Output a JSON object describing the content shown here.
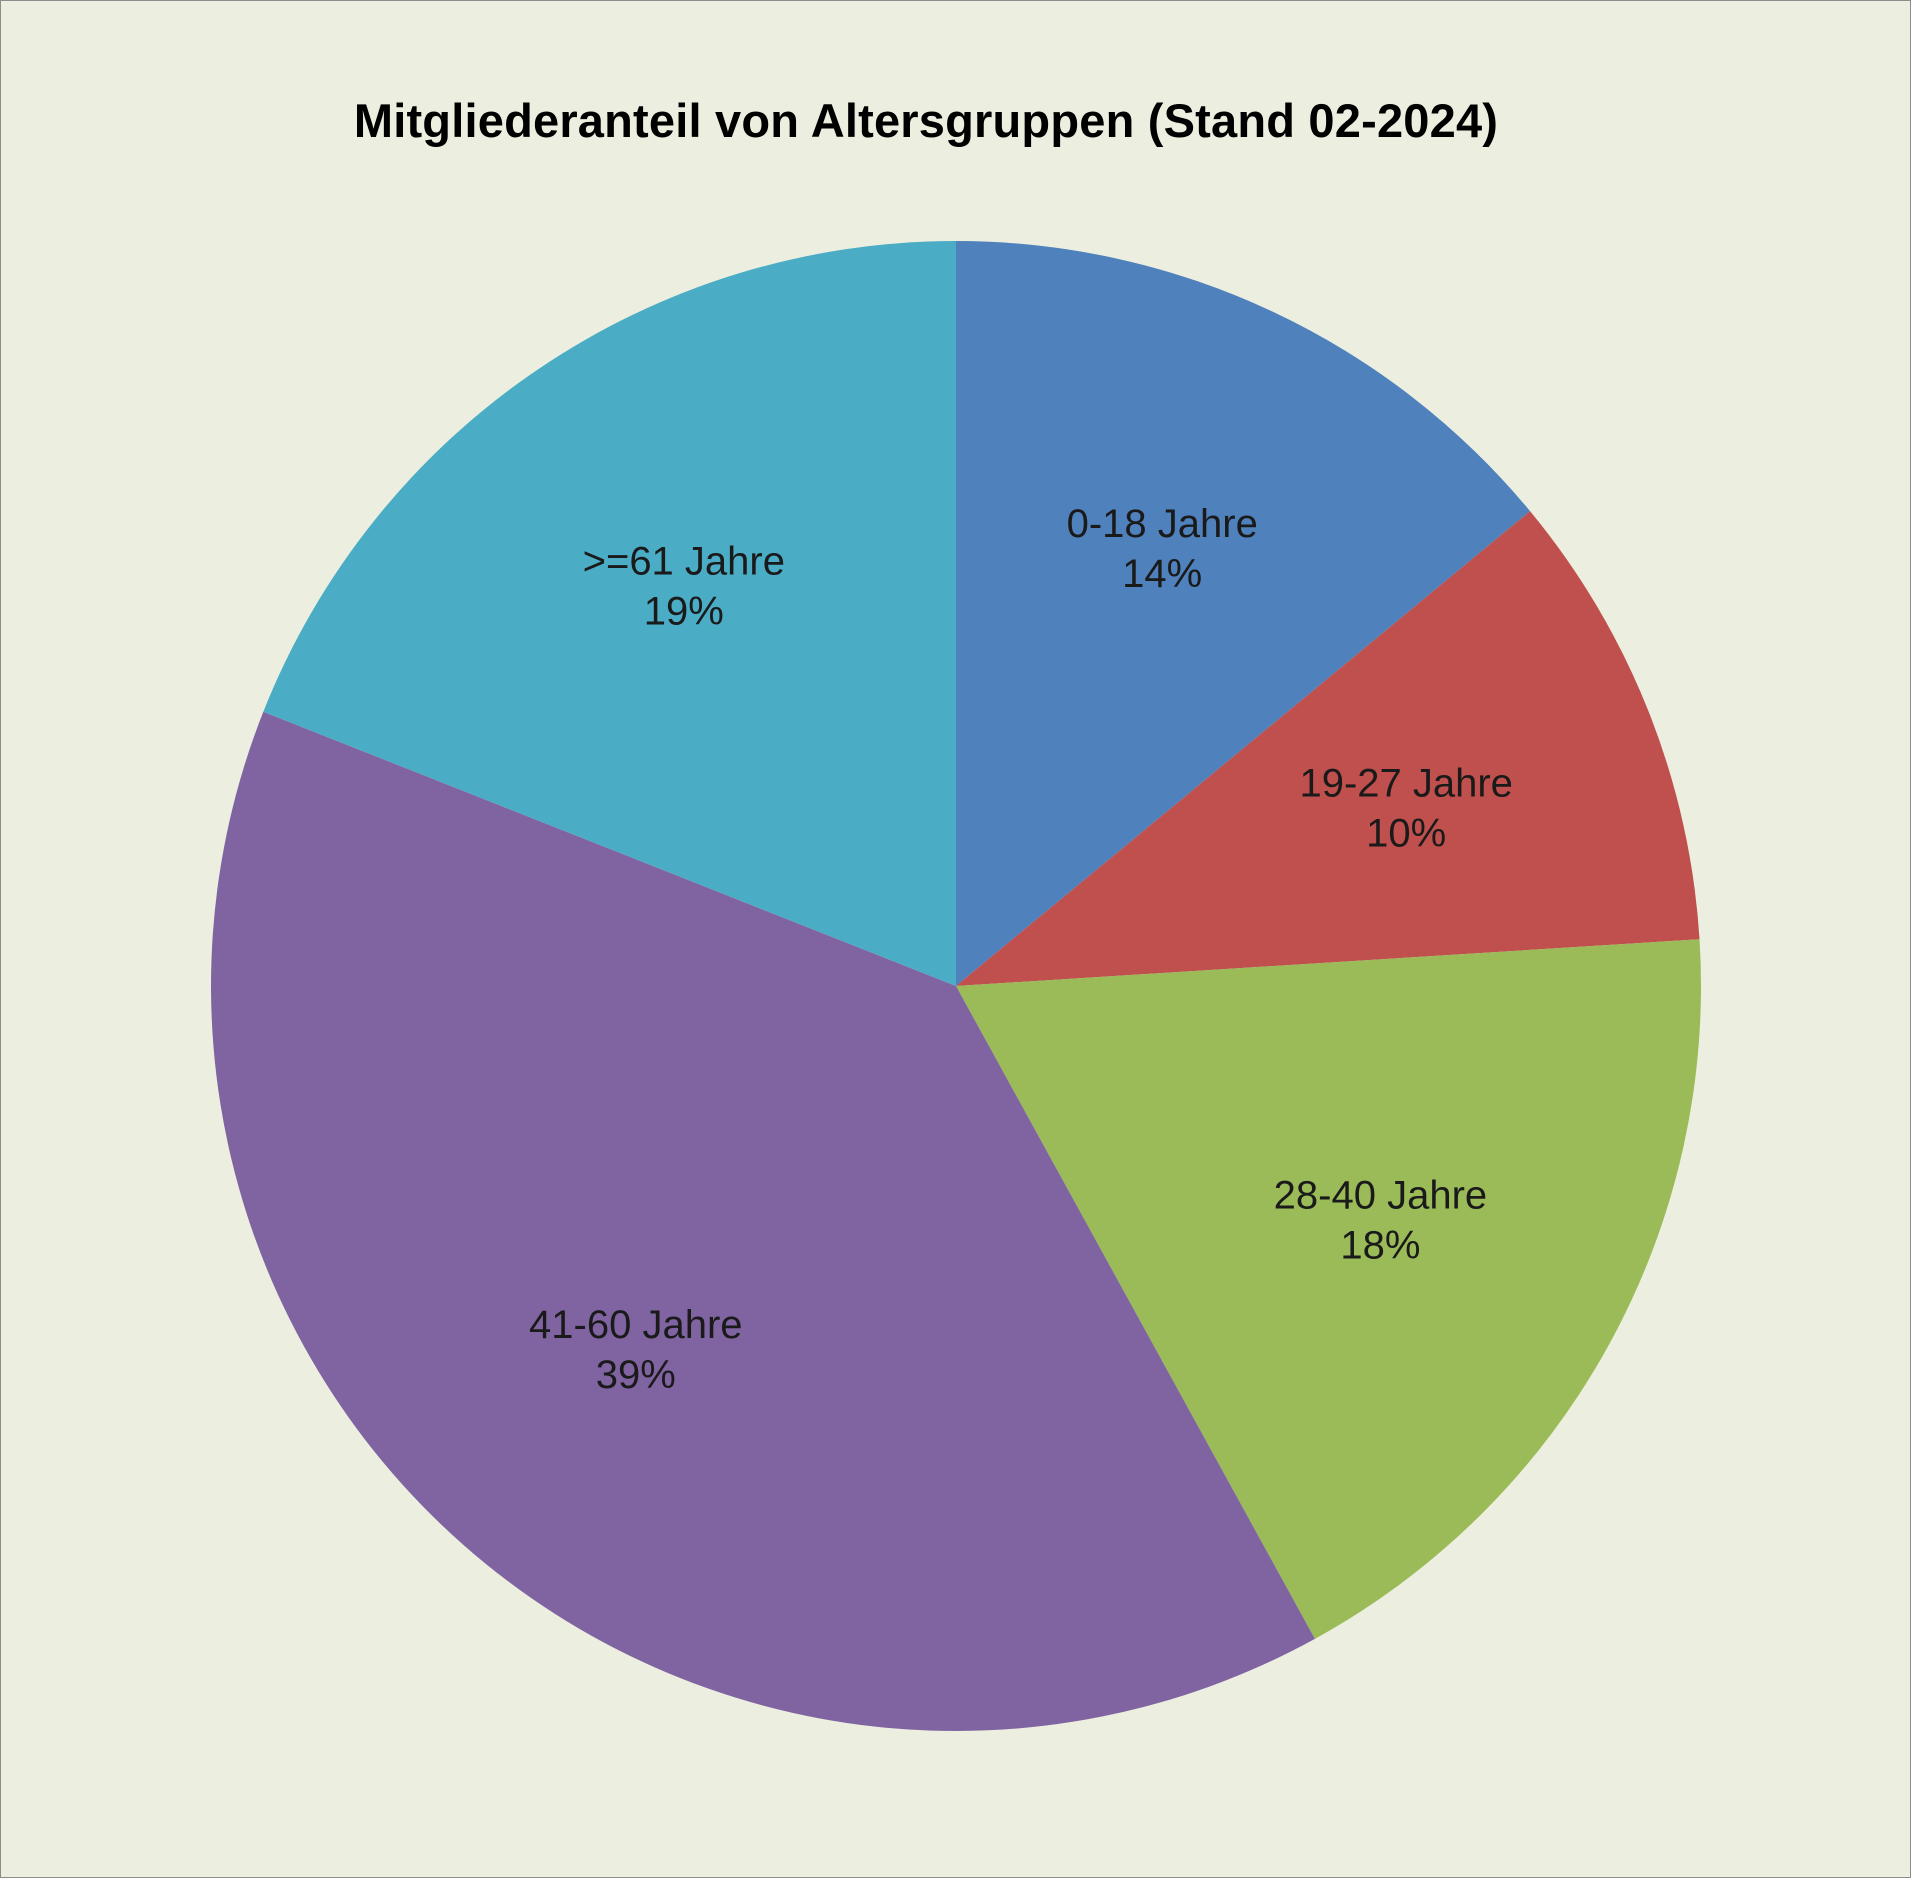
{
  "chart_data": {
    "type": "pie",
    "title": "Mitgliederanteil von Altersgruppen (Stand 02-2024)",
    "categories": [
      "0-18 Jahre",
      "19-27 Jahre",
      "28-40 Jahre",
      "41-60 Jahre",
      ">=61 Jahre"
    ],
    "values": [
      14,
      10,
      18,
      39,
      19
    ],
    "value_labels": [
      "14%",
      "10%",
      "18%",
      "39%",
      "19%"
    ],
    "unit": "%",
    "start_angle": "12 o'clock",
    "direction": "clockwise",
    "legend": "none",
    "colors": [
      "#4F81BD",
      "#C0504D",
      "#9BBB59",
      "#8064A2",
      "#4BACC6"
    ],
    "background": "#ECEFDF"
  }
}
